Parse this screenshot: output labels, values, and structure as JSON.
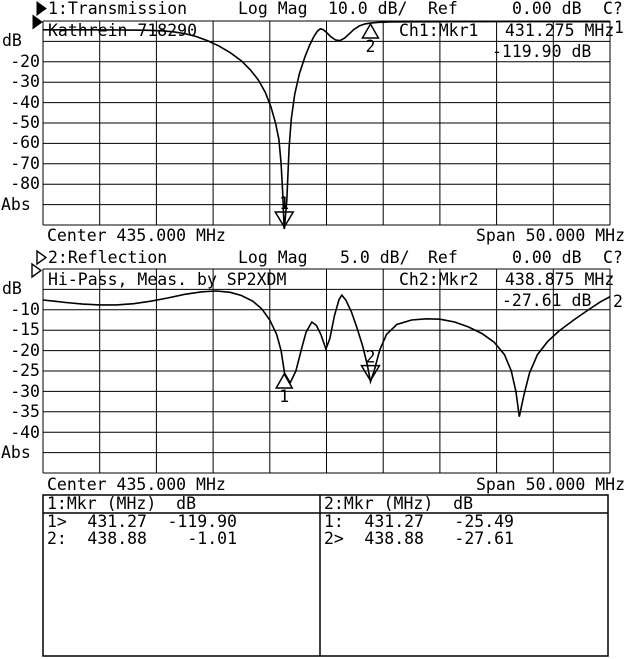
{
  "ch1": {
    "header": {
      "title": "1:Transmission",
      "format": "Log Mag",
      "scale": "10.0 dB/",
      "ref_label": "Ref",
      "ref_value": "0.00 dB",
      "cal_status": "C?"
    },
    "device_label": "Kathrein 718290",
    "readout": {
      "label": "Ch1:Mkr1",
      "freq": "431.275 MHz",
      "level": "-119.90 dB"
    },
    "trace_number": "1",
    "axis": {
      "unit_top": "dB",
      "unit_bottom": "Abs",
      "ticks": [
        "-20",
        "-30",
        "-40",
        "-50",
        "-60",
        "-70",
        "-80"
      ]
    },
    "footer": {
      "center": "Center 435.000 MHz",
      "span": "Span 50.000 MHz"
    }
  },
  "ch2": {
    "header": {
      "title": "2:Reflection",
      "format": "Log Mag",
      "scale": "5.0 dB/",
      "ref_label": "Ref",
      "ref_value": "0.00 dB",
      "cal_status": "C?"
    },
    "device_label": "Hi-Pass, Meas. by SP2XDM",
    "readout": {
      "label": "Ch2:Mkr2",
      "freq": "438.875 MHz",
      "level": "-27.61 dB"
    },
    "trace_number": "2",
    "axis": {
      "unit_top": "dB",
      "unit_bottom": "Abs",
      "ticks": [
        "-10",
        "-15",
        "-20",
        "-25",
        "-30",
        "-35",
        "-40"
      ]
    },
    "footer": {
      "center": "Center 435.000 MHz",
      "span": "Span 50.000 MHz"
    }
  },
  "marker_table": {
    "left": {
      "header": "1:Mkr (MHz)  dB",
      "rows": [
        {
          "sel": "1>",
          "freq": "431.27",
          "level": "-119.90"
        },
        {
          "sel": "2:",
          "freq": "438.88",
          "level": "-1.01"
        }
      ]
    },
    "right": {
      "header": "2:Mkr (MHz)  dB",
      "rows": [
        {
          "sel": "1:",
          "freq": "431.27",
          "level": "-25.49"
        },
        {
          "sel": "2>",
          "freq": "438.88",
          "level": "-27.61"
        }
      ]
    }
  },
  "chart_data": [
    {
      "type": "line",
      "channel": 1,
      "title": "1:Transmission",
      "y_scale_db_per_div": 10.0,
      "ref_db": 0.0,
      "center_mhz": 435.0,
      "span_mhz": 50.0,
      "x_range": [
        410,
        460
      ],
      "y_range": [
        -100,
        0
      ],
      "x_unit": "MHz",
      "y_unit": "dB",
      "grid": "10x10",
      "points": [
        [
          410,
          -4.3
        ],
        [
          414,
          -4.3
        ],
        [
          417,
          -4.4
        ],
        [
          419,
          -4.5
        ],
        [
          420.5,
          -4.8
        ],
        [
          421.5,
          -5.3
        ],
        [
          422.5,
          -6.2
        ],
        [
          423.5,
          -7.6
        ],
        [
          424.5,
          -9.6
        ],
        [
          425.5,
          -12.2
        ],
        [
          426.5,
          -15.5
        ],
        [
          427.5,
          -19.5
        ],
        [
          428.3,
          -24
        ],
        [
          429,
          -29
        ],
        [
          429.6,
          -35
        ],
        [
          430.1,
          -42
        ],
        [
          430.5,
          -50
        ],
        [
          430.8,
          -58
        ],
        [
          431.0,
          -70
        ],
        [
          431.15,
          -85
        ],
        [
          431.27,
          -103
        ],
        [
          431.5,
          -88
        ],
        [
          431.7,
          -62
        ],
        [
          431.9,
          -48
        ],
        [
          432.2,
          -36
        ],
        [
          432.6,
          -26
        ],
        [
          433.1,
          -17.5
        ],
        [
          433.5,
          -12
        ],
        [
          433.9,
          -7.5
        ],
        [
          434.2,
          -5
        ],
        [
          434.45,
          -3.8
        ],
        [
          434.7,
          -4.2
        ],
        [
          435.0,
          -5.6
        ],
        [
          435.4,
          -7.8
        ],
        [
          435.8,
          -9.3
        ],
        [
          436.2,
          -9.6
        ],
        [
          436.6,
          -8.4
        ],
        [
          437.0,
          -6.3
        ],
        [
          437.4,
          -4.2
        ],
        [
          437.9,
          -2.4
        ],
        [
          438.4,
          -1.4
        ],
        [
          438.88,
          -1.01
        ],
        [
          439.5,
          -0.7
        ],
        [
          440.5,
          -0.5
        ],
        [
          442,
          -0.4
        ],
        [
          445,
          -0.35
        ],
        [
          450,
          -0.3
        ],
        [
          455,
          -0.3
        ],
        [
          460,
          -0.35
        ]
      ],
      "markers": [
        {
          "label": "1",
          "freq_mhz": 431.275,
          "db": -119.9,
          "offscale": true,
          "pointing": "down",
          "label_side": "above"
        },
        {
          "label": "2",
          "freq_mhz": 438.875,
          "db": -1.01,
          "offscale": false,
          "pointing": "up",
          "label_side": "below"
        }
      ]
    },
    {
      "type": "line",
      "channel": 2,
      "title": "2:Reflection",
      "y_scale_db_per_div": 5.0,
      "ref_db": 0.0,
      "center_mhz": 435.0,
      "span_mhz": 50.0,
      "x_range": [
        410,
        460
      ],
      "y_range": [
        -50,
        0
      ],
      "x_unit": "MHz",
      "y_unit": "dB",
      "grid": "10x10",
      "points": [
        [
          410,
          -7.6
        ],
        [
          411,
          -7.9
        ],
        [
          412,
          -8.2
        ],
        [
          413.5,
          -8.6
        ],
        [
          415,
          -8.8
        ],
        [
          416.5,
          -8.8
        ],
        [
          418,
          -8.5
        ],
        [
          419.5,
          -7.9
        ],
        [
          421,
          -7.1
        ],
        [
          422.5,
          -6.2
        ],
        [
          424,
          -5.6
        ],
        [
          425.3,
          -5.4
        ],
        [
          426.5,
          -5.7
        ],
        [
          427.5,
          -6.5
        ],
        [
          428.5,
          -7.9
        ],
        [
          429.3,
          -9.8
        ],
        [
          430,
          -12.5
        ],
        [
          430.6,
          -16
        ],
        [
          431.0,
          -20
        ],
        [
          431.3,
          -25.5
        ],
        [
          431.8,
          -27.9
        ],
        [
          432.3,
          -25
        ],
        [
          432.8,
          -19.5
        ],
        [
          433.2,
          -15.5
        ],
        [
          433.7,
          -13
        ],
        [
          434.1,
          -13.8
        ],
        [
          434.5,
          -16
        ],
        [
          434.95,
          -19.6
        ],
        [
          435.3,
          -17
        ],
        [
          435.7,
          -11.5
        ],
        [
          436.1,
          -7.5
        ],
        [
          436.35,
          -6.4
        ],
        [
          436.7,
          -7.6
        ],
        [
          437.2,
          -10.5
        ],
        [
          437.7,
          -14.5
        ],
        [
          438.2,
          -19
        ],
        [
          438.6,
          -23.5
        ],
        [
          438.88,
          -27.61
        ],
        [
          439.2,
          -25
        ],
        [
          439.7,
          -19.8
        ],
        [
          440.3,
          -16
        ],
        [
          441.2,
          -13.6
        ],
        [
          442.5,
          -12.5
        ],
        [
          443.8,
          -12.2
        ],
        [
          445,
          -12.3
        ],
        [
          446.3,
          -13
        ],
        [
          447.5,
          -14.2
        ],
        [
          448.7,
          -15.8
        ],
        [
          449.8,
          -18
        ],
        [
          450.7,
          -21
        ],
        [
          451.3,
          -25
        ],
        [
          451.7,
          -30
        ],
        [
          452.0,
          -36.2
        ],
        [
          452.4,
          -31
        ],
        [
          452.9,
          -25.5
        ],
        [
          453.6,
          -21
        ],
        [
          454.5,
          -17.8
        ],
        [
          455.5,
          -15.2
        ],
        [
          456.8,
          -12.5
        ],
        [
          458.2,
          -9.8
        ],
        [
          459.2,
          -8
        ],
        [
          460,
          -6.8
        ]
      ],
      "markers": [
        {
          "label": "1",
          "freq_mhz": 431.27,
          "db": -25.49,
          "offscale": false,
          "pointing": "up",
          "label_side": "below"
        },
        {
          "label": "2",
          "freq_mhz": 438.875,
          "db": -27.61,
          "offscale": false,
          "pointing": "down",
          "label_side": "above"
        }
      ]
    }
  ]
}
